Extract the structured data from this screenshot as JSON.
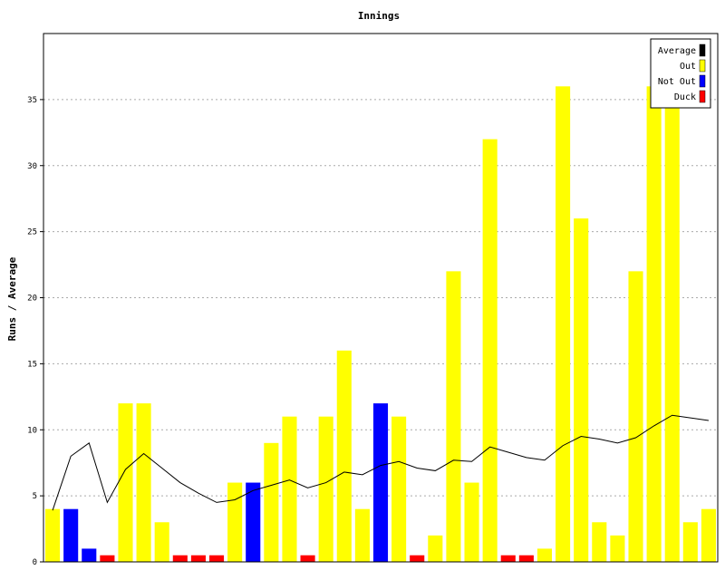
{
  "chart_data": {
    "type": "bar",
    "title": "Innings",
    "ylabel": "Runs / Average",
    "xlabel": "",
    "ylim": [
      0,
      40
    ],
    "yticks": [
      0,
      5,
      10,
      15,
      20,
      25,
      30,
      35
    ],
    "grid": true,
    "legend_placement": "top-right",
    "legend": [
      {
        "name": "Average",
        "color": "#000000"
      },
      {
        "name": "Out",
        "color": "#ffff00"
      },
      {
        "name": "Not Out",
        "color": "#0000ff"
      },
      {
        "name": "Duck",
        "color": "#ff0000"
      }
    ],
    "innings": [
      {
        "runs": 4,
        "status": "Out"
      },
      {
        "runs": 4,
        "status": "Not Out"
      },
      {
        "runs": 1,
        "status": "Not Out"
      },
      {
        "runs": 0,
        "status": "Duck"
      },
      {
        "runs": 12,
        "status": "Out"
      },
      {
        "runs": 12,
        "status": "Out"
      },
      {
        "runs": 3,
        "status": "Out"
      },
      {
        "runs": 0,
        "status": "Duck"
      },
      {
        "runs": 0,
        "status": "Duck"
      },
      {
        "runs": 0,
        "status": "Duck"
      },
      {
        "runs": 6,
        "status": "Out"
      },
      {
        "runs": 6,
        "status": "Not Out"
      },
      {
        "runs": 9,
        "status": "Out"
      },
      {
        "runs": 11,
        "status": "Out"
      },
      {
        "runs": 0,
        "status": "Duck"
      },
      {
        "runs": 11,
        "status": "Out"
      },
      {
        "runs": 16,
        "status": "Out"
      },
      {
        "runs": 4,
        "status": "Out"
      },
      {
        "runs": 12,
        "status": "Not Out"
      },
      {
        "runs": 11,
        "status": "Out"
      },
      {
        "runs": 0,
        "status": "Duck"
      },
      {
        "runs": 2,
        "status": "Out"
      },
      {
        "runs": 22,
        "status": "Out"
      },
      {
        "runs": 6,
        "status": "Out"
      },
      {
        "runs": 32,
        "status": "Out"
      },
      {
        "runs": 0,
        "status": "Duck"
      },
      {
        "runs": 0,
        "status": "Duck"
      },
      {
        "runs": 1,
        "status": "Out"
      },
      {
        "runs": 36,
        "status": "Out"
      },
      {
        "runs": 26,
        "status": "Out"
      },
      {
        "runs": 3,
        "status": "Out"
      },
      {
        "runs": 2,
        "status": "Out"
      },
      {
        "runs": 22,
        "status": "Out"
      },
      {
        "runs": 36,
        "status": "Out"
      },
      {
        "runs": 36,
        "status": "Out"
      },
      {
        "runs": 3,
        "status": "Out"
      },
      {
        "runs": 4,
        "status": "Out"
      }
    ],
    "average": [
      3.9,
      8.0,
      9.0,
      4.5,
      7.0,
      8.2,
      7.1,
      6.0,
      5.2,
      4.5,
      4.7,
      5.4,
      5.8,
      6.2,
      5.6,
      6.0,
      6.8,
      6.6,
      7.3,
      7.6,
      7.1,
      6.9,
      7.7,
      7.6,
      8.7,
      8.3,
      7.9,
      7.7,
      8.8,
      9.5,
      9.3,
      9.0,
      9.4,
      10.3,
      11.1,
      10.9,
      10.7
    ]
  }
}
